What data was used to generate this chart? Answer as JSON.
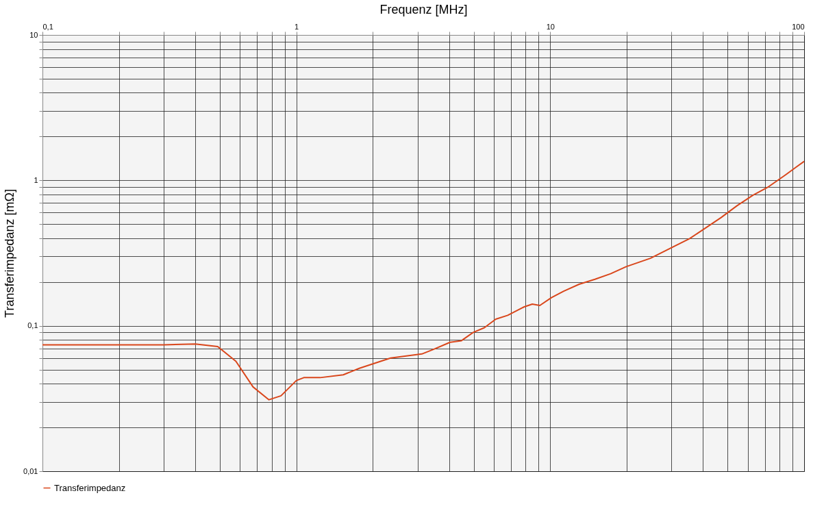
{
  "chart_data": {
    "type": "line",
    "xlabel": "Frequenz [MHz]",
    "ylabel": "Transferimpedanz [mΩ]",
    "log": "xy",
    "grid": true,
    "legend": "bottom",
    "line_style": "solid",
    "marker": "none",
    "xlim": [
      0.1,
      100
    ],
    "ylim": [
      0.01,
      10
    ],
    "xticks": [
      {
        "value": 0.1,
        "label": "0,1"
      },
      {
        "value": 0.2,
        "label": null
      },
      {
        "value": 0.3,
        "label": null
      },
      {
        "value": 0.4,
        "label": null
      },
      {
        "value": 0.5,
        "label": null
      },
      {
        "value": 0.6,
        "label": null
      },
      {
        "value": 0.7,
        "label": null
      },
      {
        "value": 0.8,
        "label": null
      },
      {
        "value": 0.9,
        "label": null
      },
      1,
      {
        "value": 2,
        "label": null
      },
      {
        "value": 3,
        "label": null
      },
      {
        "value": 4,
        "label": null
      },
      {
        "value": 5,
        "label": null
      },
      {
        "value": 6,
        "label": null
      },
      {
        "value": 7,
        "label": null
      },
      {
        "value": 8,
        "label": null
      },
      {
        "value": 9,
        "label": null
      },
      10,
      {
        "value": 20,
        "label": null
      },
      {
        "value": 30,
        "label": null
      },
      {
        "value": 40,
        "label": null
      },
      {
        "value": 50,
        "label": null
      },
      {
        "value": 60,
        "label": null
      },
      {
        "value": 70,
        "label": null
      },
      {
        "value": 80,
        "label": null
      },
      {
        "value": 90,
        "label": null
      },
      100
    ],
    "yticks": [
      {
        "value": 0.01,
        "label": "0,01"
      },
      {
        "value": 0.02,
        "label": null
      },
      {
        "value": 0.03,
        "label": null
      },
      {
        "value": 0.04,
        "label": null
      },
      {
        "value": 0.05,
        "label": null
      },
      {
        "value": 0.06,
        "label": null
      },
      {
        "value": 0.07,
        "label": null
      },
      {
        "value": 0.08,
        "label": null
      },
      {
        "value": 0.09,
        "label": null
      },
      {
        "value": 0.1,
        "label": "0,1"
      },
      {
        "value": 0.2,
        "label": null
      },
      {
        "value": 0.3,
        "label": null
      },
      {
        "value": 0.4,
        "label": null
      },
      {
        "value": 0.5,
        "label": null
      },
      {
        "value": 0.6,
        "label": null
      },
      {
        "value": 0.7,
        "label": null
      },
      {
        "value": 0.8,
        "label": null
      },
      {
        "value": 0.9,
        "label": null
      },
      1,
      {
        "value": 2,
        "label": null
      },
      {
        "value": 3,
        "label": null
      },
      {
        "value": 4,
        "label": null
      },
      {
        "value": 5,
        "label": null
      },
      {
        "value": 6,
        "label": null
      },
      {
        "value": 7,
        "label": null
      },
      {
        "value": 8,
        "label": null
      },
      {
        "value": 9,
        "label": null
      },
      10
    ],
    "x": [
      0.1,
      0.2,
      0.3,
      0.4,
      0.49,
      0.578,
      0.675,
      0.78,
      0.87,
      1.0,
      1.07,
      1.24,
      1.53,
      1.77,
      2.35,
      3.12,
      3.48,
      4.03,
      4.47,
      4.97,
      5.5,
      6.1,
      6.8,
      7.9,
      8.5,
      9.1,
      10.1,
      11.3,
      13.0,
      15.0,
      17.3,
      19.9,
      24.8,
      30.6,
      35.4,
      40.9,
      47.1,
      54.4,
      62.8,
      72.5,
      83.8,
      93.4,
      100
    ],
    "series": [
      {
        "name": "Transferimpedanz",
        "color": "#d9461b",
        "values": [
          0.074,
          0.074,
          0.074,
          0.075,
          0.072,
          0.057,
          0.038,
          0.031,
          0.033,
          0.042,
          0.044,
          0.044,
          0.046,
          0.051,
          0.06,
          0.064,
          0.069,
          0.077,
          0.079,
          0.09,
          0.097,
          0.111,
          0.118,
          0.135,
          0.141,
          0.138,
          0.156,
          0.173,
          0.193,
          0.209,
          0.228,
          0.255,
          0.291,
          0.35,
          0.398,
          0.47,
          0.555,
          0.669,
          0.79,
          0.905,
          1.08,
          1.24,
          1.35
        ]
      }
    ]
  }
}
